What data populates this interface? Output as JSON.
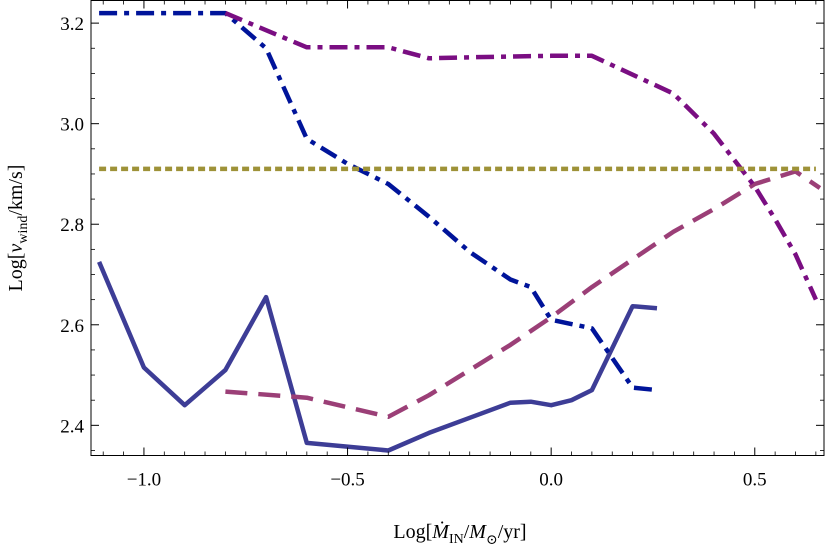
{
  "chart_data": {
    "type": "line",
    "title": "",
    "xlabel": {
      "prefix": "Log[",
      "dot_symbol": "Ṁ",
      "subscript_in": "IN",
      "slash": "/",
      "m_symbol": "M",
      "subscript_sun": "⊙",
      "suffix": "/yr]"
    },
    "ylabel": {
      "prefix": "Log[",
      "v_symbol": "v",
      "subscript_wind": "wind",
      "suffix": "/km/s]"
    },
    "xlim": [
      -1.13,
      0.67
    ],
    "ylim": [
      2.34,
      3.245
    ],
    "xticks": [
      -1.0,
      -0.5,
      0.0,
      0.5
    ],
    "xtick_labels": [
      "−1.0",
      "−0.5",
      "0.0",
      "0.5"
    ],
    "yticks": [
      2.4,
      2.6,
      2.8,
      3.0,
      3.2
    ],
    "ytick_labels": [
      "2.4",
      "2.6",
      "2.8",
      "3.0",
      "3.2"
    ],
    "grid": false,
    "series": [
      {
        "name": "solid-blue",
        "style": "solid",
        "color": "#3d3d96",
        "points": [
          [
            -1.11,
            2.725
          ],
          [
            -1.0,
            2.515
          ],
          [
            -0.9,
            2.44
          ],
          [
            -0.8,
            2.51
          ],
          [
            -0.7,
            2.655
          ],
          [
            -0.6,
            2.365
          ],
          [
            -0.4,
            2.35
          ],
          [
            -0.3,
            2.385
          ],
          [
            -0.2,
            2.415
          ],
          [
            -0.1,
            2.445
          ],
          [
            -0.05,
            2.447
          ],
          [
            0.0,
            2.44
          ],
          [
            0.05,
            2.45
          ],
          [
            0.1,
            2.47
          ],
          [
            0.2,
            2.637
          ],
          [
            0.26,
            2.633
          ]
        ]
      },
      {
        "name": "dashed-mauve",
        "style": "dashed",
        "color": "#9b3f77",
        "points": [
          [
            -0.8,
            2.467
          ],
          [
            -0.6,
            2.455
          ],
          [
            -0.4,
            2.417
          ],
          [
            -0.3,
            2.46
          ],
          [
            -0.2,
            2.51
          ],
          [
            -0.1,
            2.56
          ],
          [
            0.0,
            2.615
          ],
          [
            0.1,
            2.675
          ],
          [
            0.2,
            2.73
          ],
          [
            0.3,
            2.785
          ],
          [
            0.4,
            2.83
          ],
          [
            0.5,
            2.88
          ],
          [
            0.6,
            2.905
          ],
          [
            0.66,
            2.872
          ]
        ]
      },
      {
        "name": "dashdot-blue",
        "style": "dashdot",
        "color": "#00149a",
        "points": [
          [
            -1.11,
            3.22
          ],
          [
            -0.8,
            3.22
          ],
          [
            -0.7,
            3.15
          ],
          [
            -0.6,
            2.97
          ],
          [
            -0.5,
            2.92
          ],
          [
            -0.4,
            2.88
          ],
          [
            -0.3,
            2.815
          ],
          [
            -0.2,
            2.745
          ],
          [
            -0.1,
            2.69
          ],
          [
            -0.05,
            2.675
          ],
          [
            0.0,
            2.61
          ],
          [
            0.1,
            2.593
          ],
          [
            0.2,
            2.475
          ],
          [
            0.26,
            2.47
          ]
        ]
      },
      {
        "name": "dashdot-purple",
        "style": "dashdot",
        "color": "#7a0e82",
        "points": [
          [
            -0.8,
            3.22
          ],
          [
            -0.6,
            3.152
          ],
          [
            -0.4,
            3.152
          ],
          [
            -0.3,
            3.13
          ],
          [
            -0.2,
            3.132
          ],
          [
            0.0,
            3.135
          ],
          [
            0.1,
            3.135
          ],
          [
            0.3,
            3.06
          ],
          [
            0.4,
            2.98
          ],
          [
            0.5,
            2.875
          ],
          [
            0.55,
            2.81
          ],
          [
            0.6,
            2.74
          ],
          [
            0.65,
            2.65
          ]
        ]
      },
      {
        "name": "dotted-olive",
        "style": "dotted",
        "color": "#9e9238",
        "points": [
          [
            -1.11,
            2.91
          ],
          [
            0.65,
            2.91
          ]
        ]
      }
    ]
  }
}
